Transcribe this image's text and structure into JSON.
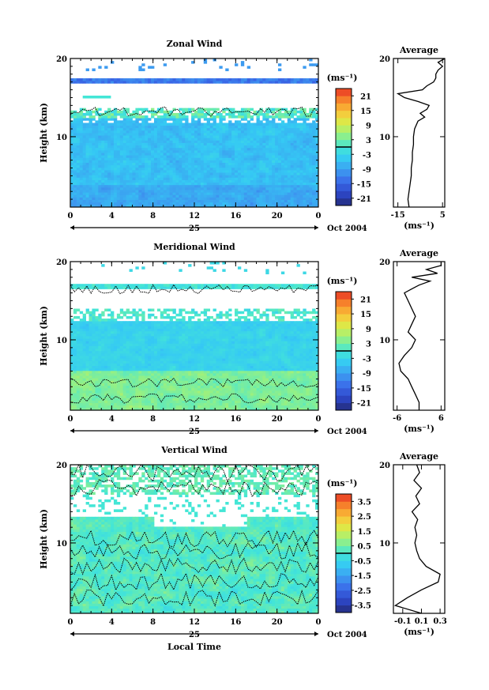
{
  "chart_data": [
    {
      "type": "heatmap",
      "title": "Zonal Wind",
      "xlabel": "",
      "ylabel": "Height (km)",
      "x_ticks": [
        "0",
        "4",
        "8",
        "12",
        "16",
        "20",
        "0"
      ],
      "xlim": [
        0,
        24
      ],
      "y_ticks": [
        "10",
        "20"
      ],
      "ylim": [
        1,
        20
      ],
      "date_day": "25",
      "date_label": "Oct 2004",
      "colorbar": {
        "unit": "(ms⁻¹)",
        "ticks": [
          "21",
          "15",
          "9",
          "3",
          "-3",
          "-9",
          "-15",
          "-21"
        ],
        "range": [
          -24,
          24
        ],
        "zero_line": true
      },
      "profile": {
        "title": "Average",
        "xlabel": "(ms⁻¹)",
        "x_ticks": [
          "-15",
          "5"
        ],
        "xlim": [
          -17,
          6
        ],
        "height": [
          1,
          2,
          3,
          4,
          5,
          6,
          7,
          8,
          9,
          10,
          11,
          12,
          12.5,
          13,
          13.5,
          14,
          14.5,
          15,
          15.5,
          16,
          16.5,
          17,
          17.5,
          18,
          18.5,
          19,
          19.5,
          20
        ],
        "value": [
          -10,
          -10.5,
          -10,
          -9.5,
          -9,
          -9,
          -8.5,
          -8.5,
          -8,
          -8,
          -7.5,
          -6,
          -3,
          -5,
          -2,
          -1,
          -6,
          -12,
          -15,
          -4,
          -2,
          1,
          2,
          2,
          3,
          5,
          3,
          6
        ]
      }
    },
    {
      "type": "heatmap",
      "title": "Meridional Wind",
      "xlabel": "",
      "ylabel": "Height (km)",
      "x_ticks": [
        "0",
        "4",
        "8",
        "12",
        "16",
        "20",
        "0"
      ],
      "xlim": [
        0,
        24
      ],
      "y_ticks": [
        "10",
        "20"
      ],
      "ylim": [
        1,
        20
      ],
      "date_day": "25",
      "date_label": "Oct 2004",
      "colorbar": {
        "unit": "(ms⁻¹)",
        "ticks": [
          "21",
          "15",
          "9",
          "3",
          "-3",
          "-9",
          "-15",
          "-21"
        ],
        "range": [
          -24,
          24
        ],
        "zero_line": true
      },
      "profile": {
        "title": "Average",
        "xlabel": "(ms⁻¹)",
        "x_ticks": [
          "-6",
          "6"
        ],
        "xlim": [
          -7,
          7
        ],
        "height": [
          1,
          2,
          3,
          4,
          5,
          6,
          7,
          8,
          9,
          10,
          11,
          12,
          13,
          14,
          15,
          16,
          16.5,
          17,
          17.5,
          18,
          18.5,
          19,
          19.5,
          20
        ],
        "value": [
          0,
          0,
          -1,
          -2,
          -3,
          -5,
          -5.5,
          -4,
          -2,
          -1,
          -3,
          -2,
          -1,
          -2,
          -3,
          -4,
          -2,
          0,
          3,
          -2,
          5,
          2,
          6,
          6
        ]
      }
    },
    {
      "type": "heatmap",
      "title": "Vertical Wind",
      "xlabel": "Local Time",
      "ylabel": "Height (km)",
      "x_ticks": [
        "0",
        "4",
        "8",
        "12",
        "16",
        "20",
        "0"
      ],
      "xlim": [
        0,
        24
      ],
      "y_ticks": [
        "10",
        "20"
      ],
      "ylim": [
        1,
        20
      ],
      "date_day": "25",
      "date_label": "Oct 2004",
      "colorbar": {
        "unit": "(ms⁻¹)",
        "ticks": [
          "3.5",
          "2.5",
          "1.5",
          "0.5",
          "-0.5",
          "-1.5",
          "-2.5",
          "-3.5"
        ],
        "range": [
          -4,
          4
        ],
        "zero_line": true
      },
      "profile": {
        "title": "Average",
        "xlabel": "(ms⁻¹)",
        "x_ticks": [
          "-0.1",
          "0.1",
          "0.3"
        ],
        "xlim": [
          -0.2,
          0.35
        ],
        "height": [
          1,
          2,
          3,
          4,
          5,
          6,
          7,
          8,
          9,
          10,
          11,
          12,
          13,
          14,
          15,
          16,
          17,
          18,
          19,
          20
        ],
        "value": [
          0.1,
          -0.18,
          -0.05,
          0.1,
          0.28,
          0.3,
          0.15,
          0.08,
          0.05,
          0.03,
          0.05,
          0.03,
          0.06,
          0.0,
          0.08,
          0.04,
          0.1,
          0.02,
          0.08,
          0.05
        ]
      }
    }
  ]
}
